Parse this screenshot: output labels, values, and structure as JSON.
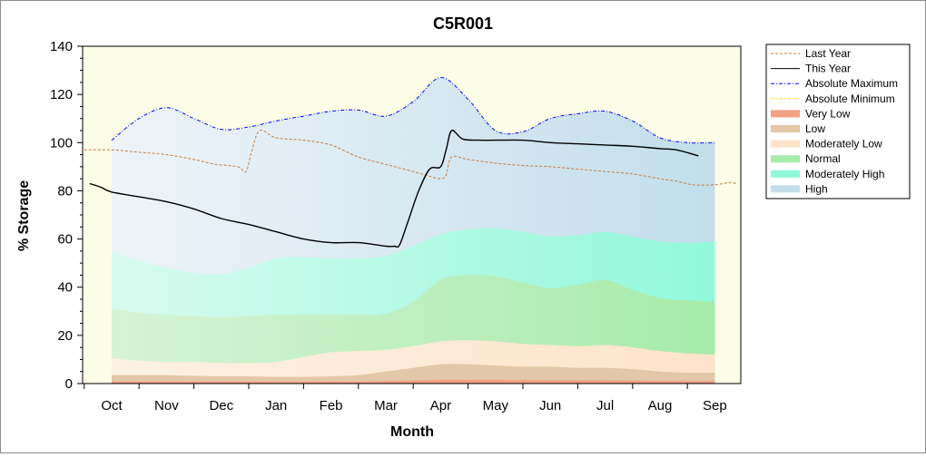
{
  "chart_data": {
    "type": "area",
    "title": "C5R001",
    "xlabel": "Month",
    "ylabel": "% Storage",
    "categories": [
      "Oct",
      "Nov",
      "Dec",
      "Jan",
      "Feb",
      "Mar",
      "Apr",
      "May",
      "Jun",
      "Jul",
      "Aug",
      "Sep"
    ],
    "ylim": [
      0,
      140
    ],
    "yticks": [
      0,
      20,
      40,
      60,
      80,
      100,
      120,
      140
    ],
    "grid": false,
    "legend_position": "right",
    "colors": {
      "plot_background": "#fcfde6",
      "last_year": "#c8793a",
      "this_year": "#000000",
      "abs_max": "#0000ff",
      "abs_min": "#ffd700",
      "very_low": "#f2a184",
      "low": "#e3c7a8",
      "moderately_low": "#fde3c9",
      "normal": "#a6ebaa",
      "moderately_high": "#91f8da",
      "high": "#c2deeb"
    },
    "bands": [
      {
        "name": "High",
        "key": "high",
        "x": [
          0,
          0.5,
          1,
          1.5,
          2,
          2.5,
          3,
          3.5,
          4,
          4.5,
          5,
          5.5,
          6,
          6.5,
          7,
          7.5,
          8,
          8.5,
          9,
          9.5,
          10,
          10.5,
          11
        ],
        "values": [
          101,
          110,
          114.5,
          110,
          105.5,
          106.5,
          109,
          111,
          113,
          113.5,
          111,
          117,
          127,
          118,
          105,
          104.5,
          110,
          112,
          113,
          109,
          102,
          100,
          100
        ]
      },
      {
        "name": "Moderately High",
        "key": "moderately_high",
        "x": [
          0,
          0.5,
          1,
          1.5,
          2,
          2.5,
          3,
          3.5,
          4,
          4.5,
          5,
          5.5,
          6,
          6.5,
          7,
          7.5,
          8,
          8.5,
          9,
          9.5,
          10,
          10.5,
          11
        ],
        "values": [
          55,
          51,
          48,
          46,
          45.5,
          48,
          52,
          52.5,
          52,
          52,
          53,
          57,
          62,
          64,
          64.5,
          63,
          61,
          61.5,
          63,
          61,
          59,
          58.5,
          59
        ]
      },
      {
        "name": "Normal",
        "key": "normal",
        "x": [
          0,
          0.5,
          1,
          1.5,
          2,
          2.5,
          3,
          3.5,
          4,
          4.5,
          5,
          5.5,
          6,
          6.5,
          7,
          7.5,
          8,
          8.5,
          9,
          9.5,
          10,
          10.5,
          11
        ],
        "values": [
          31,
          29.5,
          28.5,
          28,
          27.5,
          28,
          28.5,
          28.5,
          28.5,
          28.5,
          29,
          34,
          43,
          45,
          44.5,
          42,
          39.5,
          41,
          43,
          39,
          35.5,
          34.5,
          34
        ]
      },
      {
        "name": "Moderately Low",
        "key": "moderately_low",
        "x": [
          0,
          0.5,
          1,
          1.5,
          2,
          2.5,
          3,
          3.5,
          4,
          4.5,
          5,
          5.5,
          6,
          6.5,
          7,
          7.5,
          8,
          8.5,
          9,
          9.5,
          10,
          10.5,
          11
        ],
        "values": [
          10.5,
          9.5,
          9,
          9,
          8.5,
          8.5,
          9,
          11,
          13,
          13.5,
          14,
          15.5,
          17.5,
          18,
          17.5,
          16.5,
          16,
          15.5,
          16,
          15,
          13.5,
          12.5,
          12
        ]
      },
      {
        "name": "Low",
        "key": "low",
        "x": [
          0,
          0.5,
          1,
          1.5,
          2,
          2.5,
          3,
          3.5,
          4,
          4.5,
          5,
          5.5,
          6,
          6.5,
          7,
          7.5,
          8,
          8.5,
          9,
          9.5,
          10,
          10.5,
          11
        ],
        "values": [
          3.5,
          3.5,
          3.5,
          3.2,
          3,
          3,
          2.8,
          2.8,
          3,
          3.5,
          5,
          6.5,
          8,
          8,
          7.5,
          7,
          7,
          6.5,
          6.5,
          6,
          5,
          4.5,
          4.5
        ]
      },
      {
        "name": "Very Low",
        "key": "very_low",
        "x": [
          0,
          0.5,
          1,
          1.5,
          2,
          2.5,
          3,
          3.5,
          4,
          4.5,
          5,
          5.5,
          6,
          6.5,
          7,
          7.5,
          8,
          8.5,
          9,
          9.5,
          10,
          10.5,
          11
        ],
        "values": [
          0.8,
          0.8,
          0.8,
          0.8,
          0.8,
          0.8,
          0.8,
          0.8,
          0.8,
          0.8,
          1,
          1.2,
          1.5,
          1.5,
          1.5,
          1.4,
          1.3,
          1.3,
          1.3,
          1.2,
          1.1,
          1,
          1
        ]
      }
    ],
    "series": [
      {
        "name": "Last Year",
        "key": "last_year",
        "style": "dashed",
        "x": [
          -0.5,
          0,
          0.5,
          1,
          1.5,
          1.9,
          2.3,
          2.45,
          2.55,
          2.7,
          3,
          3.5,
          4,
          4.5,
          5,
          5.5,
          5.8,
          6,
          6.1,
          6.2,
          6.5,
          7,
          7.5,
          8,
          8.5,
          9,
          9.5,
          10,
          10.3,
          10.6,
          11,
          11.3,
          11.4
        ],
        "values": [
          97,
          97,
          96,
          95,
          93,
          91,
          90,
          88,
          96,
          105,
          102,
          101,
          99,
          94,
          91,
          88,
          86,
          85,
          86.5,
          94,
          93,
          91.5,
          90.5,
          90,
          89,
          88,
          87,
          85,
          84,
          82.5,
          82.5,
          83.5,
          82.5
        ]
      },
      {
        "name": "This Year",
        "key": "this_year",
        "style": "solid",
        "x": [
          -0.4,
          -0.2,
          0,
          0.5,
          1,
          1.5,
          2,
          2.5,
          3,
          3.5,
          4,
          4.5,
          5,
          5.15,
          5.25,
          5.4,
          5.6,
          5.8,
          6,
          6.1,
          6.2,
          6.4,
          6.7,
          7,
          7.5,
          8,
          8.5,
          9,
          9.5,
          10,
          10.3,
          10.7
        ],
        "values": [
          83,
          81.5,
          79.5,
          77.5,
          75.5,
          72.5,
          68.5,
          66,
          63,
          60,
          58.5,
          58.5,
          57,
          57,
          57.5,
          67,
          80,
          89,
          90,
          97,
          105,
          101.5,
          101,
          101,
          101,
          100,
          99.5,
          99,
          98.5,
          97.5,
          97,
          94.5
        ]
      },
      {
        "name": "Absolute Maximum",
        "key": "abs_max",
        "style": "dashdot",
        "x": [
          0,
          0.5,
          1,
          1.5,
          2,
          2.5,
          3,
          3.5,
          4,
          4.5,
          5,
          5.5,
          6,
          6.5,
          7,
          7.5,
          8,
          8.5,
          9,
          9.5,
          10,
          10.5,
          11
        ],
        "values": [
          101,
          110,
          114.5,
          110,
          105.5,
          106.5,
          109,
          111,
          113,
          113.5,
          111,
          117,
          127,
          118,
          105,
          104.5,
          110,
          112,
          113,
          109,
          102,
          100,
          100
        ]
      },
      {
        "name": "Absolute Minimum",
        "key": "abs_min",
        "style": "dashdot",
        "x": [
          0,
          1,
          2,
          3,
          4,
          5,
          6,
          7,
          8,
          9,
          10,
          11
        ],
        "values": [
          0,
          0,
          0,
          0,
          0,
          0,
          0,
          0,
          0,
          0,
          0,
          0
        ]
      }
    ],
    "legend": [
      {
        "label": "Last Year",
        "key": "last_year",
        "kind": "line-dashed"
      },
      {
        "label": "This Year",
        "key": "this_year",
        "kind": "line-solid"
      },
      {
        "label": "Absolute Maximum",
        "key": "abs_max",
        "kind": "line-dashdot"
      },
      {
        "label": "Absolute Minimum",
        "key": "abs_min",
        "kind": "line-dashdot"
      },
      {
        "label": "Very Low",
        "key": "very_low",
        "kind": "area"
      },
      {
        "label": "Low",
        "key": "low",
        "kind": "area"
      },
      {
        "label": "Moderately Low",
        "key": "moderately_low",
        "kind": "area"
      },
      {
        "label": "Normal",
        "key": "normal",
        "kind": "area"
      },
      {
        "label": "Moderately High",
        "key": "moderately_high",
        "kind": "area"
      },
      {
        "label": "High",
        "key": "high",
        "kind": "area"
      }
    ]
  }
}
